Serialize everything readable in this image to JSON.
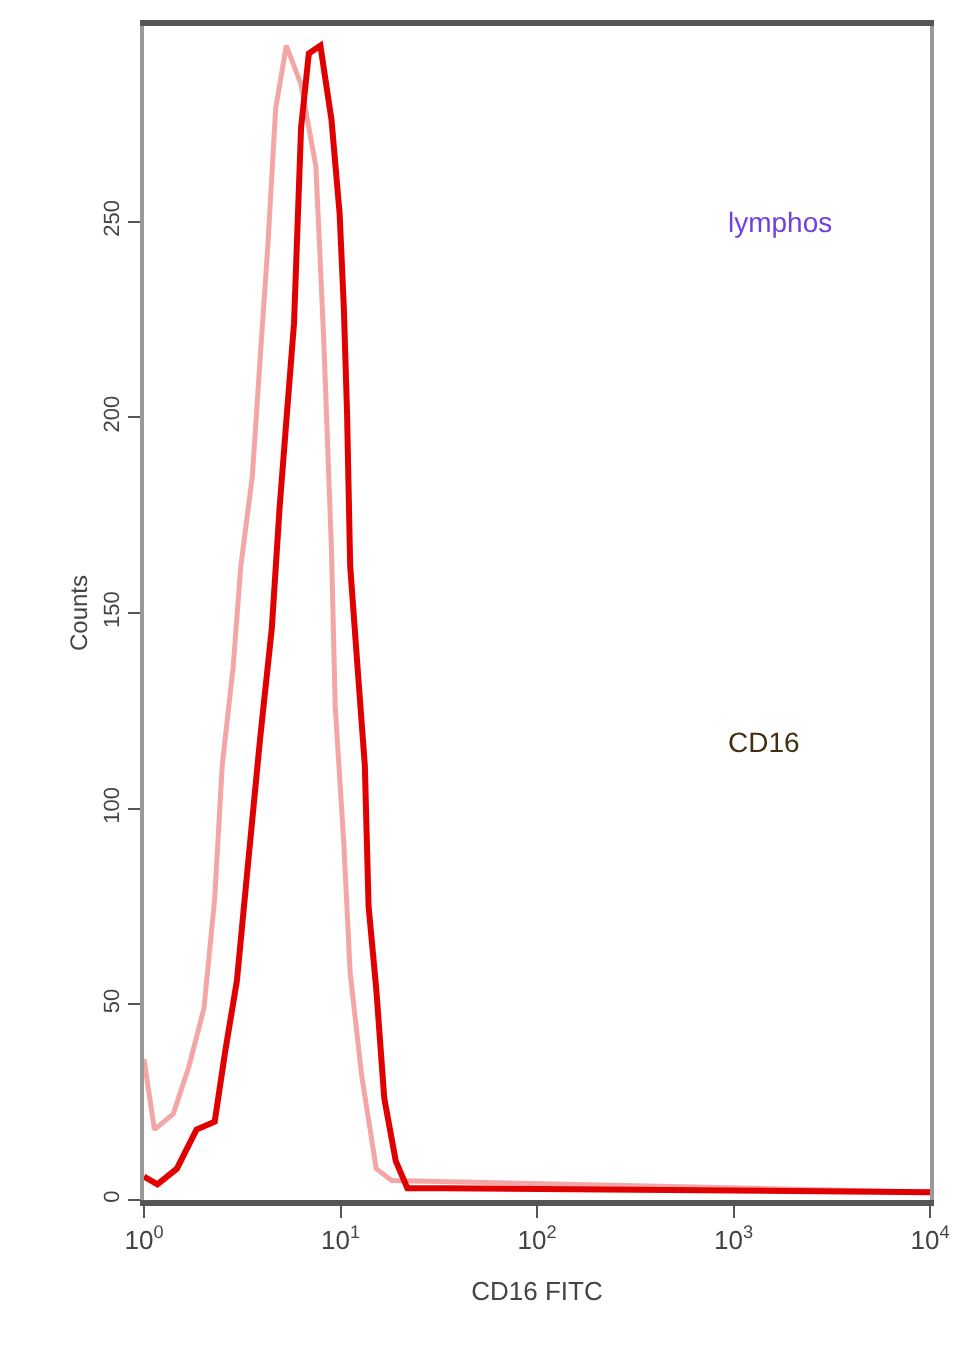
{
  "chart_data": {
    "type": "line",
    "xlabel": "CD16 FITC",
    "ylabel": "Counts",
    "annotations": [
      "lymphos",
      "CD16"
    ],
    "log": "x",
    "xlim": [
      1,
      10000
    ],
    "xticks": [
      {
        "value": 1,
        "label": "10$^{0}$"
      },
      {
        "value": 10,
        "label": "10$^{1}$"
      },
      {
        "value": 100,
        "label": "10$^{2}$"
      },
      {
        "value": 1000,
        "label": "10$^{3}$"
      },
      {
        "value": 10000,
        "label": "10$^{4}$"
      }
    ],
    "ylim": [
      0,
      300
    ],
    "yticks": [
      0,
      50,
      100,
      150,
      200,
      250
    ],
    "marker": "none",
    "line_style": "solid",
    "series": [
      {
        "color": "#f4a6a6",
        "x": [
          1.0,
          1.13,
          1.41,
          1.69,
          2.02,
          2.29,
          2.5,
          2.84,
          3.11,
          3.56,
          3.9,
          4.27,
          4.68,
          5.3,
          6.3,
          7.5,
          8.2,
          9.0,
          9.4,
          10.4,
          11.2,
          12.8,
          15.2,
          18.2,
          10000
        ],
        "values": [
          36,
          18,
          22,
          34,
          49,
          77,
          111,
          136,
          162,
          185,
          215,
          244,
          279,
          295,
          285,
          264,
          221,
          166,
          126,
          91,
          58,
          32,
          8,
          5,
          2
        ]
      },
      {
        "color": "#e00000",
        "x": [
          1.0,
          1.17,
          1.47,
          1.85,
          2.29,
          2.59,
          2.97,
          3.4,
          3.9,
          4.47,
          4.9,
          5.3,
          5.8,
          6.3,
          6.9,
          7.9,
          9.0,
          9.9,
          10.4,
          10.8,
          11.2,
          12.3,
          13.3,
          13.9,
          15.2,
          16.7,
          19.1,
          21.9,
          33.7,
          10000
        ],
        "values": [
          6,
          4,
          8,
          18,
          20,
          38,
          56,
          87,
          118,
          146,
          177,
          199,
          224,
          274,
          293,
          295,
          276,
          252,
          228,
          201,
          162,
          134,
          111,
          75,
          54,
          26,
          10,
          3,
          3,
          2
        ]
      }
    ]
  }
}
